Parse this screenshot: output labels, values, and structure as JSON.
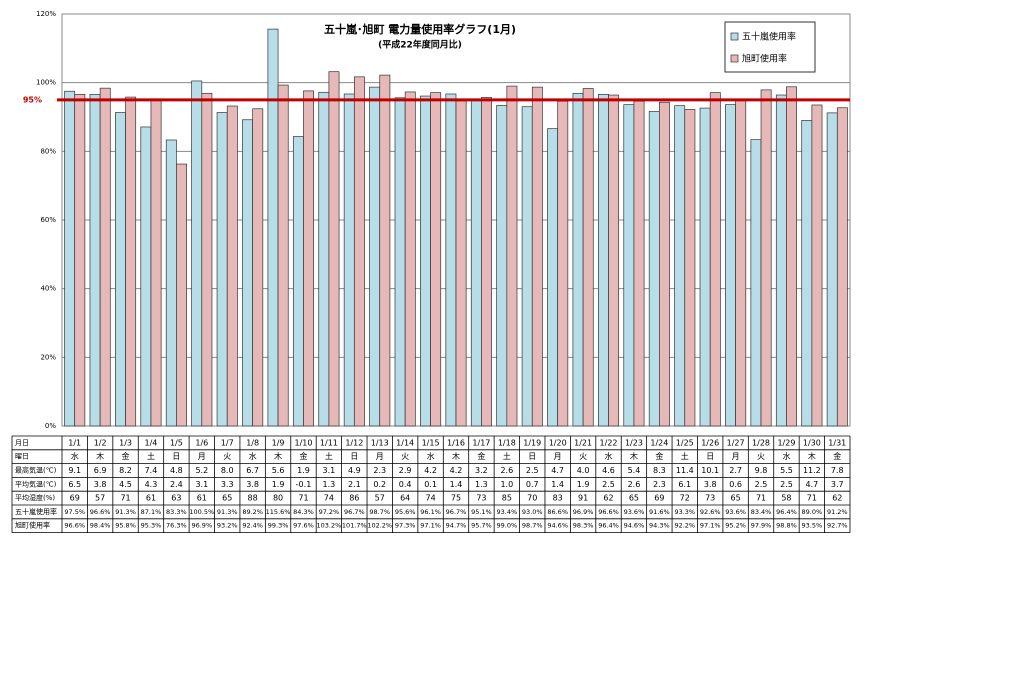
{
  "chart_data": {
    "type": "bar",
    "title": "五十嵐･旭町 電力量使用率グラフ(1月)",
    "subtitle": "(平成22年度同月比)",
    "categories": [
      "1/1",
      "1/2",
      "1/3",
      "1/4",
      "1/5",
      "1/6",
      "1/7",
      "1/8",
      "1/9",
      "1/10",
      "1/11",
      "1/12",
      "1/13",
      "1/14",
      "1/15",
      "1/16",
      "1/17",
      "1/18",
      "1/19",
      "1/20",
      "1/21",
      "1/22",
      "1/23",
      "1/24",
      "1/25",
      "1/26",
      "1/27",
      "1/28",
      "1/29",
      "1/30",
      "1/31"
    ],
    "series": [
      {
        "name": "五十嵐使用率",
        "color": "#b7dde8",
        "values": [
          97.5,
          96.6,
          91.3,
          87.1,
          83.3,
          100.5,
          91.3,
          89.2,
          115.6,
          84.3,
          97.2,
          96.7,
          98.7,
          95.6,
          96.1,
          96.7,
          95.1,
          93.4,
          93.0,
          86.6,
          96.9,
          96.6,
          93.6,
          91.6,
          93.3,
          92.6,
          93.6,
          83.4,
          96.4,
          89.0,
          91.2
        ],
        "value_labels": [
          "97.5%",
          "96.6%",
          "91.3%",
          "87.1%",
          "83.3%",
          "100.5%",
          "91.3%",
          "89.2%",
          "115.6%",
          "84.3%",
          "97.2%",
          "96.7%",
          "98.7%",
          "95.6%",
          "96.1%",
          "96.7%",
          "95.1%",
          "93.4%",
          "93.0%",
          "86.6%",
          "96.9%",
          "96.6%",
          "93.6%",
          "91.6%",
          "93.3%",
          "92.6%",
          "93.6%",
          "83.4%",
          "96.4%",
          "89.0%",
          "91.2%"
        ]
      },
      {
        "name": "旭町使用率",
        "color": "#e6b9b8",
        "values": [
          96.6,
          98.4,
          95.8,
          95.3,
          76.3,
          96.9,
          93.2,
          92.4,
          99.3,
          97.6,
          103.2,
          101.7,
          102.2,
          97.3,
          97.1,
          94.7,
          95.7,
          99.0,
          98.7,
          94.6,
          98.3,
          96.4,
          94.6,
          94.3,
          92.2,
          97.1,
          95.2,
          97.9,
          98.8,
          93.5,
          92.7
        ],
        "value_labels": [
          "96.6%",
          "98.4%",
          "95.8%",
          "95.3%",
          "76.3%",
          "96.9%",
          "93.2%",
          "92.4%",
          "99.3%",
          "97.6%",
          "103.2%",
          "101.7%",
          "102.2%",
          "97.3%",
          "97.1%",
          "94.7%",
          "95.7%",
          "99.0%",
          "98.7%",
          "94.6%",
          "98.3%",
          "96.4%",
          "94.6%",
          "94.3%",
          "92.2%",
          "97.1%",
          "95.2%",
          "97.9%",
          "98.8%",
          "93.5%",
          "92.7%"
        ]
      }
    ],
    "ylim": [
      0,
      120
    ],
    "yticks": [
      {
        "value": 0,
        "label": "0%"
      },
      {
        "value": 20,
        "label": "20%"
      },
      {
        "value": 40,
        "label": "40%"
      },
      {
        "value": 60,
        "label": "60%"
      },
      {
        "value": 80,
        "label": "80%"
      },
      {
        "value": 100,
        "label": "100%"
      },
      {
        "value": 120,
        "label": "120%"
      }
    ],
    "grid": true,
    "reference_line": {
      "value": 95,
      "label": "95%",
      "color": "#c00000"
    },
    "legend_position": "upper right",
    "table": {
      "date_label": "月日",
      "weekday_label": "曜日",
      "weekdays": [
        "水",
        "木",
        "金",
        "土",
        "日",
        "月",
        "火",
        "水",
        "木",
        "金",
        "土",
        "日",
        "月",
        "火",
        "水",
        "木",
        "金",
        "土",
        "日",
        "月",
        "火",
        "水",
        "木",
        "金",
        "土",
        "日",
        "月",
        "火",
        "水",
        "木",
        "金"
      ],
      "rows": [
        {
          "label": "最高気温(℃)",
          "values": [
            "9.1",
            "6.9",
            "8.2",
            "7.4",
            "4.8",
            "5.2",
            "8.0",
            "6.7",
            "5.6",
            "1.9",
            "3.1",
            "4.9",
            "2.3",
            "2.9",
            "4.2",
            "4.2",
            "3.2",
            "2.6",
            "2.5",
            "4.7",
            "4.0",
            "4.6",
            "5.4",
            "8.3",
            "11.4",
            "10.1",
            "2.7",
            "9.8",
            "5.5",
            "11.2",
            "7.8"
          ]
        },
        {
          "label": "平均気温(℃)",
          "values": [
            "6.5",
            "3.8",
            "4.5",
            "4.3",
            "2.4",
            "3.1",
            "3.3",
            "3.8",
            "1.9",
            "-0.1",
            "1.3",
            "2.1",
            "0.2",
            "0.4",
            "0.1",
            "1.4",
            "1.3",
            "1.0",
            "0.7",
            "1.4",
            "1.9",
            "2.5",
            "2.6",
            "2.3",
            "6.1",
            "3.8",
            "0.6",
            "2.5",
            "2.5",
            "4.7",
            "3.7"
          ]
        },
        {
          "label": "平均湿度(%)",
          "values": [
            "69",
            "57",
            "71",
            "61",
            "63",
            "61",
            "65",
            "88",
            "80",
            "71",
            "74",
            "86",
            "57",
            "64",
            "74",
            "75",
            "73",
            "85",
            "70",
            "83",
            "91",
            "62",
            "65",
            "69",
            "72",
            "73",
            "65",
            "71",
            "58",
            "71",
            "62"
          ]
        }
      ]
    }
  }
}
